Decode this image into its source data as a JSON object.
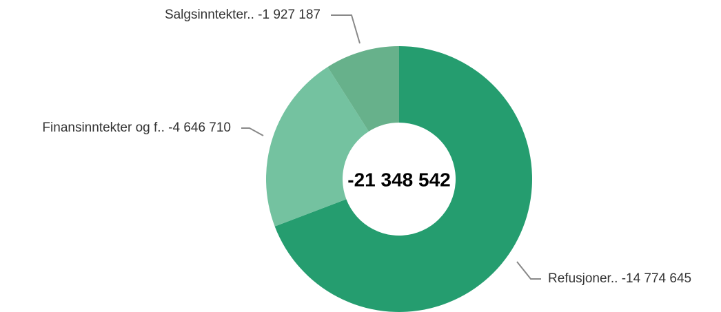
{
  "chart_data": {
    "type": "donut",
    "categories": [
      "Refusjoner..",
      "Finansinntekter og f..",
      "Salgsinntekter.."
    ],
    "values": [
      -14774645,
      -4646710,
      -1927187
    ],
    "value_labels": [
      "-14 774 645",
      "-4 646 710",
      "-1 927 187"
    ],
    "colors": [
      "#259d6f",
      "#74c2a0",
      "#67b18b"
    ],
    "total": -21348542,
    "total_label": "-21 348 542"
  }
}
